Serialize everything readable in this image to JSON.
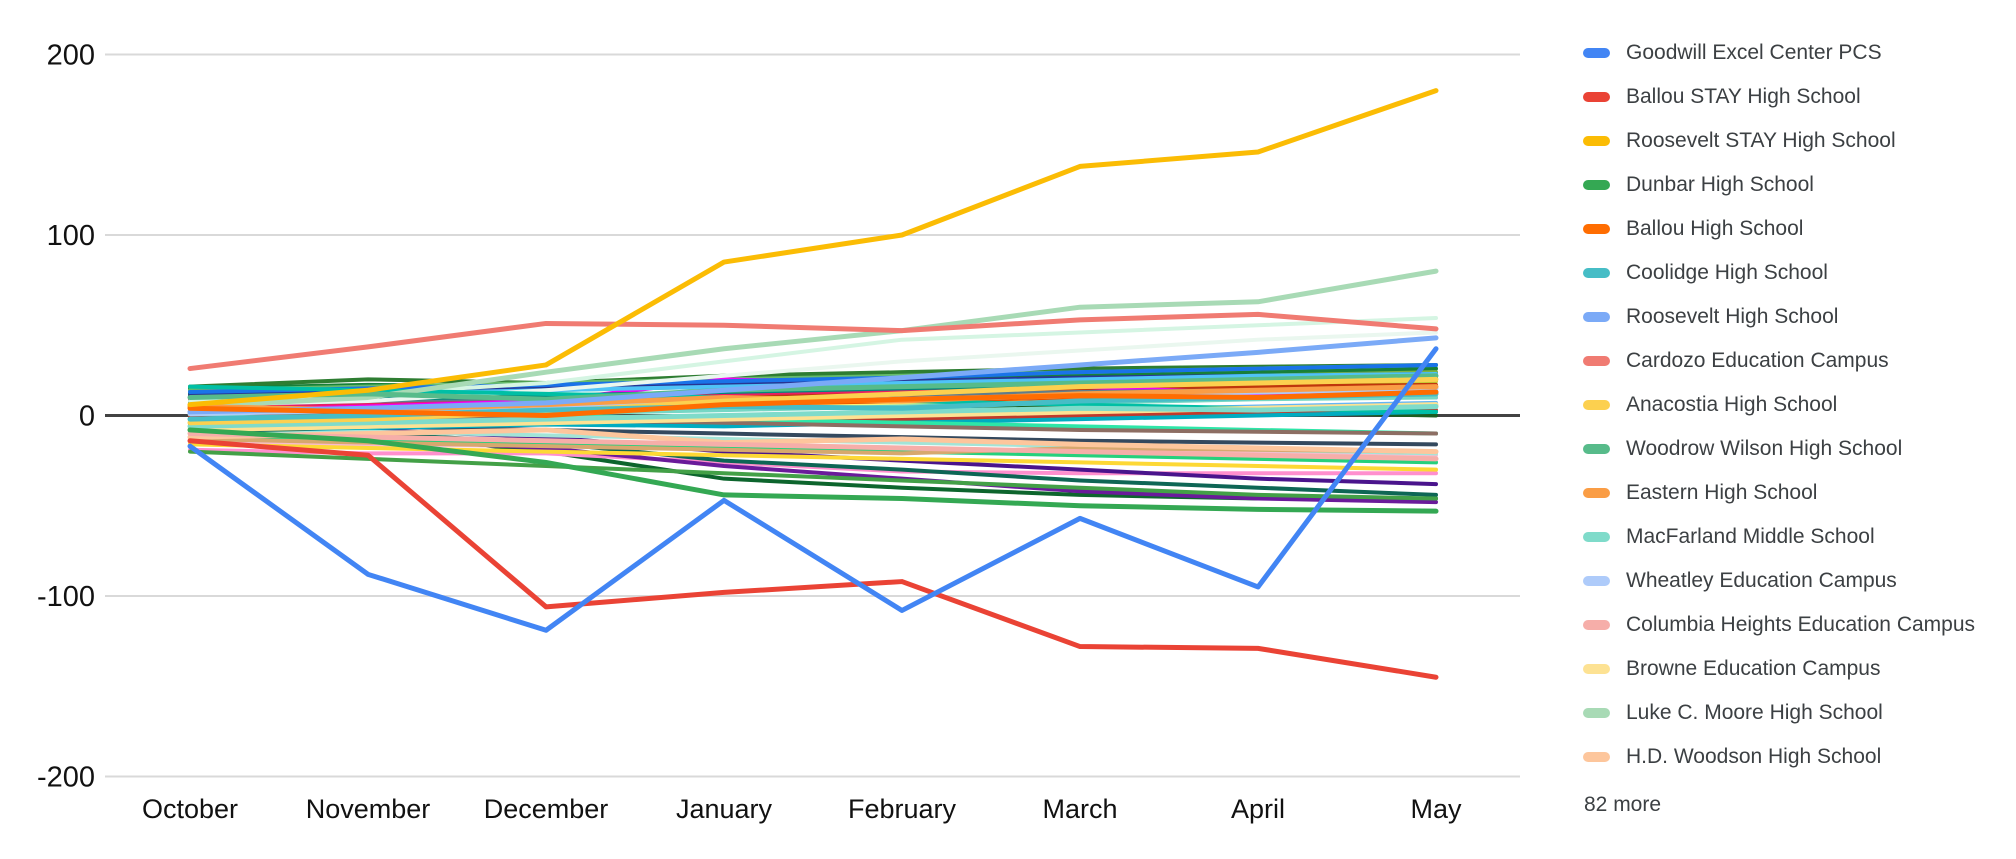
{
  "chart_data": {
    "type": "line",
    "x_categories": [
      "October",
      "November",
      "December",
      "January",
      "February",
      "March",
      "April",
      "May"
    ],
    "ylim": [
      -200,
      200
    ],
    "yticks": [
      200,
      100,
      0,
      -100,
      -200
    ],
    "grid": true,
    "legend_position": "right",
    "legend_more_label": "82 more",
    "series": [
      {
        "name": "Goodwill Excel Center PCS",
        "color": "#4285F4",
        "values": [
          -17,
          -88,
          -119,
          -47,
          -108,
          -57,
          -95,
          37
        ]
      },
      {
        "name": "Ballou STAY High School",
        "color": "#EA4335",
        "values": [
          -14,
          -22,
          -106,
          -98,
          -92,
          -128,
          -129,
          -145
        ]
      },
      {
        "name": "Roosevelt STAY High School",
        "color": "#FBBC04",
        "values": [
          6,
          14,
          28,
          85,
          100,
          138,
          146,
          180
        ]
      },
      {
        "name": "Dunbar High School",
        "color": "#34A853",
        "values": [
          -8,
          -14,
          -26,
          -44,
          -46,
          -50,
          -52,
          -53
        ]
      },
      {
        "name": "Ballou High School",
        "color": "#FF6D01",
        "values": [
          4,
          2,
          0,
          6,
          9,
          11,
          10,
          13
        ]
      },
      {
        "name": "Coolidge High School",
        "color": "#46BDC6",
        "values": [
          -2,
          0,
          3,
          5,
          4,
          8,
          10,
          12
        ]
      },
      {
        "name": "Roosevelt High School",
        "color": "#7BAAF7",
        "values": [
          2,
          4,
          7,
          14,
          21,
          28,
          35,
          43
        ]
      },
      {
        "name": "Cardozo Education Campus",
        "color": "#F07B72",
        "values": [
          26,
          38,
          51,
          50,
          47,
          53,
          56,
          48
        ]
      },
      {
        "name": "Anacostia High School",
        "color": "#FCD04F",
        "values": [
          -4,
          -2,
          2,
          8,
          12,
          16,
          18,
          20
        ]
      },
      {
        "name": "Woodrow Wilson High School",
        "color": "#57BB8A",
        "values": [
          10,
          12,
          9,
          14,
          16,
          18,
          20,
          22
        ]
      },
      {
        "name": "Eastern High School",
        "color": "#FA9D45",
        "values": [
          5,
          3,
          6,
          10,
          8,
          12,
          14,
          16
        ]
      },
      {
        "name": "MacFarland Middle School",
        "color": "#7FDBCA",
        "values": [
          -6,
          -4,
          -2,
          0,
          2,
          4,
          3,
          5
        ]
      },
      {
        "name": "Wheatley Education Campus",
        "color": "#AECBFA",
        "values": [
          1,
          3,
          5,
          7,
          9,
          11,
          13,
          15
        ]
      },
      {
        "name": "Columbia Heights Education Campus",
        "color": "#F6AEA9",
        "values": [
          -10,
          -12,
          -14,
          -16,
          -18,
          -20,
          -22,
          -24
        ]
      },
      {
        "name": "Browne Education Campus",
        "color": "#FDE293",
        "values": [
          -8,
          -6,
          -4,
          -2,
          0,
          2,
          4,
          6
        ]
      },
      {
        "name": "Luke C. Moore High School",
        "color": "#A8DAB5",
        "values": [
          5,
          10,
          24,
          37,
          47,
          60,
          63,
          80
        ]
      },
      {
        "name": "H.D. Woodson High School",
        "color": "#FDC69C",
        "values": [
          -12,
          -10,
          -8,
          -15,
          -13,
          -16,
          -18,
          -20
        ]
      }
    ],
    "unlabeled_series": [
      {
        "color": "#188038",
        "values": [
          15,
          17,
          16,
          18,
          20,
          22,
          24,
          26
        ]
      },
      {
        "color": "#0D652D",
        "values": [
          -6,
          -10,
          -20,
          -35,
          -40,
          -44,
          -46,
          -46
        ]
      },
      {
        "color": "#1B5E20",
        "values": [
          12,
          14,
          10,
          8,
          6,
          4,
          2,
          0
        ]
      },
      {
        "color": "#2E7D32",
        "values": [
          16,
          20,
          18,
          22,
          24,
          26,
          27,
          28
        ]
      },
      {
        "color": "#66BB6A",
        "values": [
          14,
          16,
          18,
          20,
          22,
          24,
          26,
          28
        ]
      },
      {
        "color": "#7CB342",
        "values": [
          8,
          10,
          14,
          16,
          18,
          20,
          22,
          24
        ]
      },
      {
        "color": "#9CCC65",
        "values": [
          -3,
          -1,
          2,
          4,
          6,
          8,
          10,
          12
        ]
      },
      {
        "color": "#C0CA33",
        "values": [
          5,
          7,
          9,
          11,
          13,
          15,
          17,
          19
        ]
      },
      {
        "color": "#D4E157",
        "values": [
          0,
          2,
          4,
          6,
          8,
          10,
          12,
          14
        ]
      },
      {
        "color": "#FFF176",
        "values": [
          -2,
          0,
          2,
          4,
          6,
          8,
          10,
          11
        ]
      },
      {
        "color": "#B7950B",
        "values": [
          6,
          4,
          8,
          10,
          12,
          14,
          15,
          16
        ]
      },
      {
        "color": "#F9A825",
        "values": [
          -5,
          -7,
          -4,
          -2,
          0,
          2,
          4,
          5
        ]
      },
      {
        "color": "#E65100",
        "values": [
          3,
          5,
          2,
          6,
          8,
          10,
          11,
          12
        ]
      },
      {
        "color": "#BF360C",
        "values": [
          7,
          9,
          11,
          10,
          12,
          14,
          16,
          17
        ]
      },
      {
        "color": "#A50E0E",
        "values": [
          9,
          7,
          5,
          8,
          10,
          12,
          14,
          15
        ]
      },
      {
        "color": "#C0392B",
        "values": [
          -1,
          -3,
          -5,
          -4,
          -2,
          0,
          2,
          3
        ]
      },
      {
        "color": "#E91E63",
        "values": [
          4,
          6,
          8,
          12,
          14,
          16,
          18,
          20
        ]
      },
      {
        "color": "#F500F5",
        "values": [
          2,
          5,
          8,
          20,
          18,
          16,
          12,
          10
        ]
      },
      {
        "color": "#FF8FCE",
        "values": [
          -19,
          -21,
          -21,
          -26,
          -31,
          -32,
          -32,
          -32
        ]
      },
      {
        "color": "#F8BBD0",
        "values": [
          -15,
          -16,
          -17,
          -18,
          -19,
          -20,
          -21,
          -22
        ]
      },
      {
        "color": "#4A148C",
        "values": [
          -5,
          -8,
          -12,
          -20,
          -25,
          -30,
          -35,
          -38
        ]
      },
      {
        "color": "#6A1B9A",
        "values": [
          -10,
          -13,
          -18,
          -28,
          -35,
          -42,
          -46,
          -48
        ]
      },
      {
        "color": "#283593",
        "values": [
          11,
          13,
          15,
          17,
          19,
          21,
          22,
          23
        ]
      },
      {
        "color": "#34495E",
        "values": [
          -4,
          -6,
          -8,
          -10,
          -12,
          -14,
          -15,
          -16
        ]
      },
      {
        "color": "#607D8B",
        "values": [
          6,
          8,
          10,
          9,
          11,
          13,
          14,
          15
        ]
      },
      {
        "color": "#1A73E8",
        "values": [
          13,
          15,
          17,
          19,
          21,
          24,
          26,
          28
        ]
      },
      {
        "color": "#64B5F6",
        "values": [
          -7,
          -5,
          -3,
          -1,
          1,
          3,
          5,
          7
        ]
      },
      {
        "color": "#4FC3F7",
        "values": [
          10,
          12,
          14,
          16,
          18,
          20,
          22,
          23
        ]
      },
      {
        "color": "#00ACC1",
        "values": [
          -9,
          -7,
          -5,
          -6,
          -4,
          -2,
          0,
          2
        ]
      },
      {
        "color": "#00897B",
        "values": [
          7,
          9,
          11,
          13,
          15,
          17,
          19,
          21
        ]
      },
      {
        "color": "#0E6655",
        "values": [
          -8,
          -10,
          -15,
          -25,
          -30,
          -36,
          -40,
          -44
        ]
      },
      {
        "color": "#26D07C",
        "values": [
          -12,
          -14,
          -16,
          -18,
          -20,
          -22,
          -24,
          -26
        ]
      },
      {
        "color": "#2EE6A8",
        "values": [
          4,
          2,
          0,
          -2,
          -4,
          -6,
          -8,
          -10
        ]
      },
      {
        "color": "#76D7C4",
        "values": [
          1,
          -1,
          1,
          3,
          5,
          7,
          9,
          10
        ]
      },
      {
        "color": "#A3E4D7",
        "values": [
          -11,
          -9,
          -11,
          -13,
          -15,
          -17,
          -19,
          -21
        ]
      },
      {
        "color": "#D5F5E3",
        "values": [
          8,
          12,
          18,
          30,
          42,
          46,
          50,
          54
        ]
      },
      {
        "color": "#EAF7EF",
        "values": [
          6,
          8,
          14,
          22,
          30,
          36,
          42,
          46
        ]
      },
      {
        "color": "#D7A86E",
        "values": [
          -13,
          -15,
          -17,
          -19,
          -21,
          -18,
          -19,
          -20
        ]
      },
      {
        "color": "#8D6E63",
        "values": [
          2,
          0,
          -2,
          -4,
          -6,
          -8,
          -9,
          -10
        ]
      },
      {
        "color": "#FDD835",
        "values": [
          -16,
          -18,
          -20,
          -22,
          -24,
          -26,
          -28,
          -30
        ]
      },
      {
        "color": "#43A047",
        "values": [
          -20,
          -24,
          -28,
          -32,
          -36,
          -40,
          -44,
          -46
        ]
      },
      {
        "color": "#00BFA5",
        "values": [
          16,
          14,
          12,
          10,
          8,
          6,
          4,
          2
        ]
      }
    ]
  }
}
